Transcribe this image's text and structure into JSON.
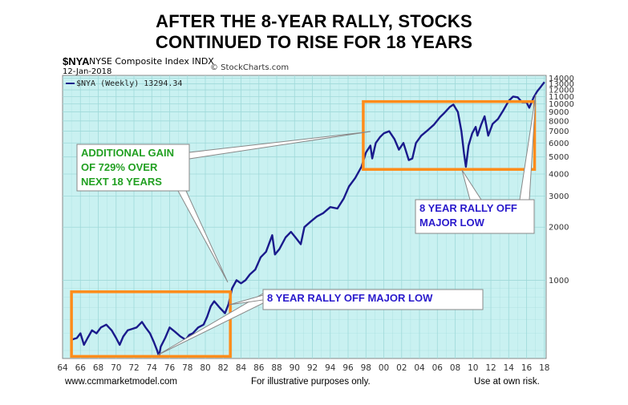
{
  "header": {
    "title_line1": "AFTER THE 8-YEAR RALLY, STOCKS",
    "title_line2": "CONTINUED TO RISE FOR 18 YEARS",
    "symbol": "$NYA",
    "index_name": "NYSE Composite Index INDX",
    "credit": "© StockCharts.com",
    "date": "12-Jan-2018"
  },
  "chart_data": {
    "type": "line",
    "legend_label": "$NYA (Weekly) 13294.34",
    "y_scale": "log",
    "ylim": [
      360,
      14500
    ],
    "y_ticks": [
      1000,
      2000,
      3000,
      4000,
      5000,
      6000,
      7000,
      8000,
      9000,
      10000,
      11000,
      12000,
      13000,
      14000
    ],
    "x_tick_labels": [
      "64",
      "66",
      "68",
      "70",
      "72",
      "74",
      "76",
      "78",
      "80",
      "82",
      "84",
      "86",
      "88",
      "90",
      "92",
      "94",
      "96",
      "98",
      "00",
      "02",
      "04",
      "06",
      "08",
      "10",
      "12",
      "14",
      "16",
      "18"
    ],
    "series": [
      {
        "x": [
          1965.0,
          1965.6,
          1966.0,
          1966.4,
          1966.8,
          1967.3,
          1967.8,
          1968.3,
          1968.9,
          1969.5,
          1970.0,
          1970.4,
          1970.8,
          1971.3,
          1971.8,
          1972.3,
          1972.9,
          1973.3,
          1973.8,
          1974.2,
          1974.6,
          1974.8,
          1975.0,
          1975.5,
          1976.0,
          1976.6,
          1977.2,
          1977.8,
          1978.2,
          1978.6,
          1979.2,
          1979.8,
          1980.2,
          1980.6,
          1981.0,
          1981.6,
          1982.2,
          1982.6,
          1983.0,
          1983.5,
          1984.0,
          1984.5,
          1985.0,
          1985.6,
          1986.2,
          1986.8,
          1987.5,
          1987.8,
          1988.3,
          1989.0,
          1989.6,
          1990.1,
          1990.7,
          1991.1,
          1991.8,
          1992.5,
          1993.2,
          1994.0,
          1994.8,
          1995.5,
          1996.1,
          1996.8,
          1997.5,
          1998.0,
          1998.5,
          1998.7,
          1999.1,
          1999.6,
          2000.0,
          2000.6,
          2001.2,
          2001.7,
          2002.2,
          2002.8,
          2003.2,
          2003.6,
          2004.2,
          2004.8,
          2005.6,
          2006.3,
          2006.8,
          2007.4,
          2007.8,
          2008.3,
          2008.7,
          2009.0,
          2009.2,
          2009.5,
          2009.9,
          2010.3,
          2010.5,
          2010.9,
          2011.3,
          2011.7,
          2012.2,
          2012.8,
          2013.4,
          2014.0,
          2014.5,
          2015.0,
          2015.5,
          2016.0,
          2016.3,
          2016.8,
          2017.2,
          2017.6,
          2018.0
        ],
        "values": [
          460,
          470,
          500,
          430,
          470,
          520,
          500,
          540,
          560,
          520,
          470,
          430,
          480,
          520,
          530,
          540,
          580,
          540,
          500,
          450,
          400,
          370,
          420,
          470,
          540,
          510,
          480,
          460,
          490,
          500,
          540,
          560,
          620,
          710,
          760,
          700,
          650,
          730,
          900,
          1000,
          960,
          1000,
          1080,
          1150,
          1350,
          1450,
          1800,
          1400,
          1500,
          1750,
          1880,
          1750,
          1600,
          2000,
          2150,
          2300,
          2400,
          2600,
          2550,
          2900,
          3400,
          3800,
          4400,
          5300,
          5800,
          4900,
          6000,
          6500,
          6800,
          7000,
          6300,
          5500,
          6000,
          4800,
          4900,
          6000,
          6600,
          7000,
          7600,
          8400,
          8900,
          9600,
          9900,
          9000,
          7000,
          5200,
          4400,
          5800,
          6800,
          7400,
          6600,
          7600,
          8500,
          6600,
          7700,
          8200,
          9200,
          10400,
          11000,
          10900,
          10200,
          10200,
          9500,
          10900,
          11800,
          12500,
          13294
        ]
      }
    ],
    "annotations": [
      "ADDITIONAL GAIN",
      "OF 729% OVER",
      "NEXT 18 YEARS",
      "8 YEAR RALLY OFF MAJOR LOW",
      "8 YEAR RALLY OFF",
      "MAJOR LOW"
    ]
  },
  "footer": {
    "left": "www.ccmmarketmodel.com",
    "middle": "For illustrative purposes only.",
    "right": "Use at own risk."
  },
  "colors": {
    "plot_background": "#c9f1f1",
    "grid": "#9fd9d9",
    "line": "#1a1a8c",
    "box": "#ff8c1a",
    "gain_text": "#22a022",
    "rally_text": "#2a1acc"
  }
}
